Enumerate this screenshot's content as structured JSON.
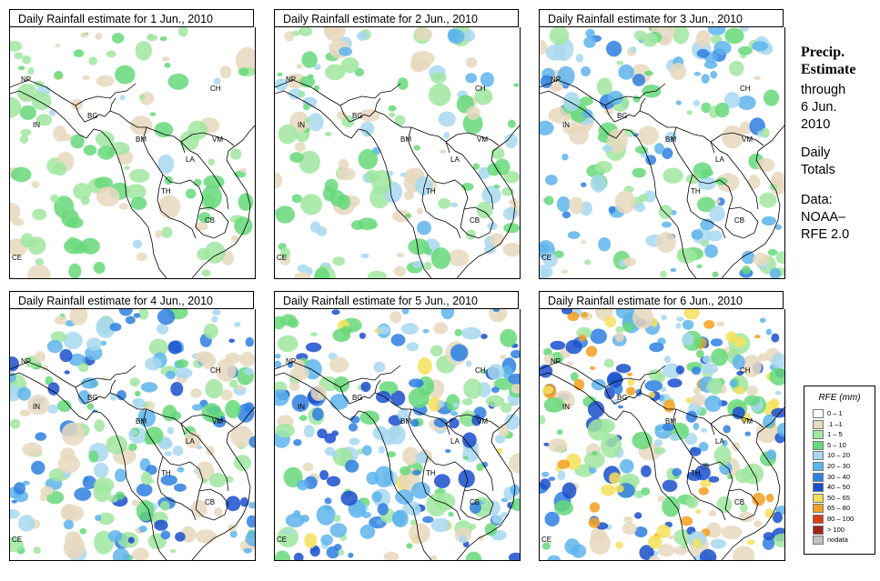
{
  "panels": [
    {
      "title": "Daily Rainfall estimate for  1 Jun., 2010",
      "intensity": 1
    },
    {
      "title": "Daily Rainfall estimate for  2 Jun., 2010",
      "intensity": 2
    },
    {
      "title": "Daily Rainfall estimate for  3 Jun., 2010",
      "intensity": 3
    },
    {
      "title": "Daily Rainfall estimate for  4 Jun., 2010",
      "intensity": 4
    },
    {
      "title": "Daily Rainfall estimate for  5 Jun., 2010",
      "intensity": 5
    },
    {
      "title": "Daily Rainfall estimate for  6 Jun., 2010",
      "intensity": 6
    }
  ],
  "country_labels": [
    "NP",
    "CH",
    "IN",
    "BG",
    "BM",
    "VM",
    "LA",
    "TH",
    "CB",
    "CE"
  ],
  "side": {
    "title1": "Precip.",
    "title2": "Estimate",
    "through": "through",
    "date1": "6 Jun.",
    "date2": "2010",
    "daily1": "Daily",
    "daily2": "Totals",
    "data1": "Data:",
    "data2": "NOAA–",
    "data3": "RFE 2.0"
  },
  "legend": {
    "title": "RFE (mm)",
    "items": [
      {
        "label": "0 – 1",
        "color": "#ffffff"
      },
      {
        "label": ".1 –1",
        "color": "#e8d8be"
      },
      {
        "label": "1 – 5",
        "color": "#a0e6a0"
      },
      {
        "label": "5 – 10",
        "color": "#66d97a"
      },
      {
        "label": "10 – 20",
        "color": "#a8d8f0"
      },
      {
        "label": "20 – 30",
        "color": "#5eb4ec"
      },
      {
        "label": "30 – 40",
        "color": "#2f7fe0"
      },
      {
        "label": "40 – 50",
        "color": "#1a4fcc"
      },
      {
        "label": "50 – 65",
        "color": "#f6e05a"
      },
      {
        "label": "65 – 80",
        "color": "#f5a020"
      },
      {
        "label": "80 – 100",
        "color": "#e03c10"
      },
      {
        "label": "> 100",
        "color": "#a0241c"
      },
      {
        "label": "nodata",
        "color": "#c0c0c0"
      }
    ]
  }
}
